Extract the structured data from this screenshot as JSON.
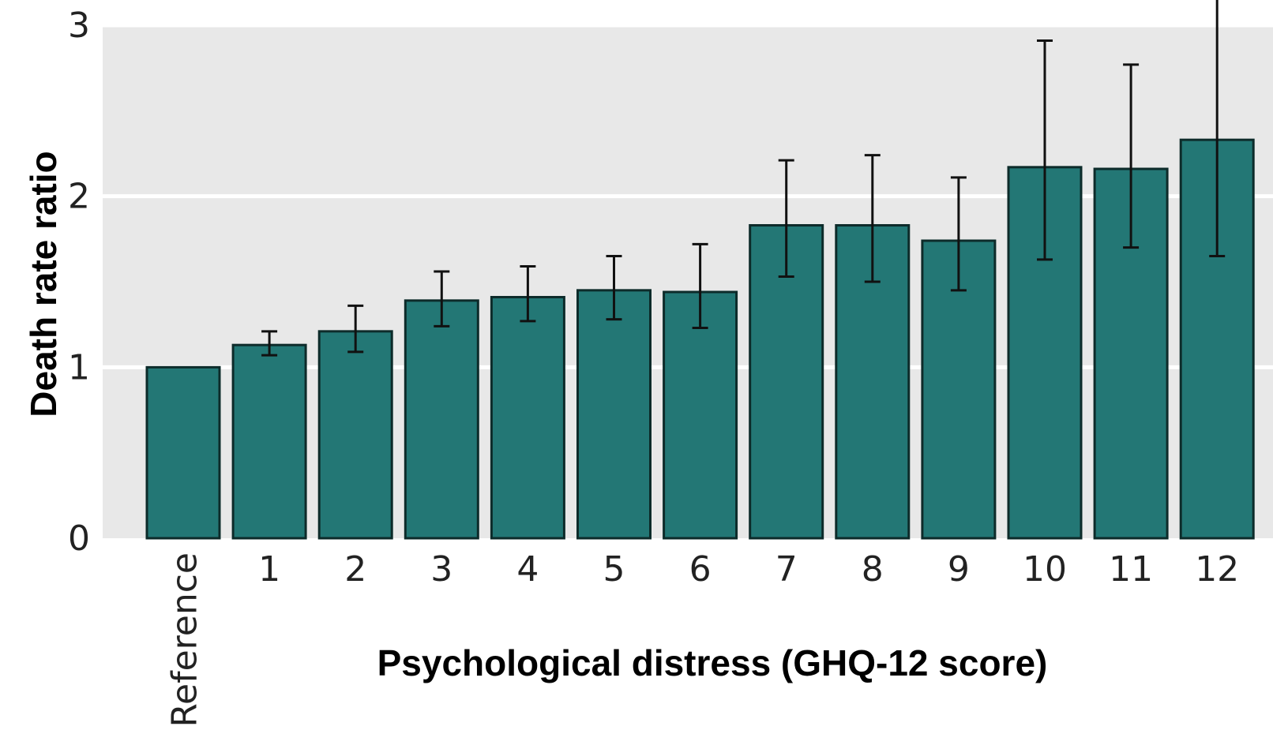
{
  "chart_data": {
    "type": "bar",
    "xlabel": "Psychological distress (GHQ-12 score)",
    "ylabel": "Death rate ratio",
    "ylim": [
      0,
      3
    ],
    "yticks": [
      "0",
      "1",
      "2",
      "3"
    ],
    "grid": "horizontal",
    "categories": [
      "Reference",
      "1",
      "2",
      "3",
      "4",
      "5",
      "6",
      "7",
      "8",
      "9",
      "10",
      "11",
      "12"
    ],
    "values": [
      1.0,
      1.13,
      1.21,
      1.39,
      1.41,
      1.45,
      1.44,
      1.83,
      1.83,
      1.74,
      2.17,
      2.16,
      2.33
    ],
    "ci_lower": [
      null,
      1.07,
      1.09,
      1.24,
      1.27,
      1.28,
      1.23,
      1.53,
      1.5,
      1.45,
      1.63,
      1.7,
      1.65
    ],
    "ci_upper": [
      null,
      1.21,
      1.36,
      1.56,
      1.59,
      1.65,
      1.72,
      2.21,
      2.24,
      2.11,
      2.91,
      2.77,
      3.4
    ],
    "colors": {
      "bar": "#237775",
      "bar_edge": "#0d2b2a",
      "plot_bg": "#e8e8e8",
      "grid": "#ffffff",
      "error_bar": "#111111"
    }
  }
}
